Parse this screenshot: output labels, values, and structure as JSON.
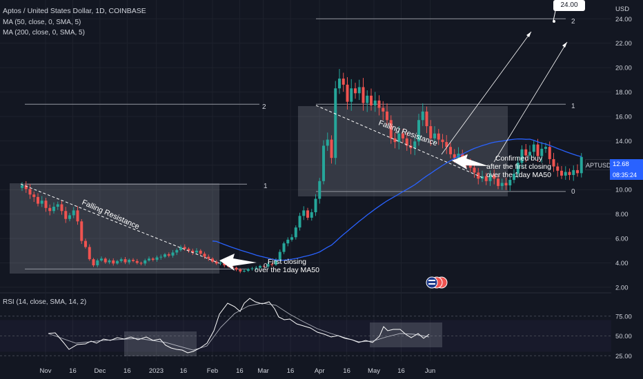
{
  "header": {
    "title": "Aptos / United States Dollar, 1D, COINBASE",
    "ma50_label": "MA (50, close, 0, SMA, 5)",
    "ma200_label": "MA (200, close, 0, SMA, 5)"
  },
  "currency_label": "USD",
  "price_tag": {
    "symbol": "APTUSD",
    "price": "12.68",
    "countdown": "08:35:24"
  },
  "target_callout": "24.00",
  "rsi_label": "RSI (14, close, SMA, 14, 2)",
  "annotations": {
    "falling_left": "Falling Resistance",
    "falling_right": "Falling Resistance",
    "first_close_line1": "First closing",
    "first_close_line2": "over the 1day MA50",
    "confirmed_line1": "Confirmed buy",
    "confirmed_line2": "after the first closing",
    "confirmed_line3": "over the 1day MA50",
    "fib_left_0": "0",
    "fib_left_1": "1",
    "fib_left_2": "2",
    "fib_right_0": "0",
    "fib_right_1": "1",
    "fib_right_2": "2"
  },
  "colors": {
    "up": "#26a69a",
    "down": "#ef5350",
    "ma50": "#2962ff",
    "background": "#131722",
    "grid": "#1e222d",
    "text": "#d1d4dc",
    "rsi": "#ffffff"
  },
  "chart_data": {
    "type": "candlestick",
    "y_axis": {
      "range": [
        1.6,
        25.2
      ],
      "ticks": [
        "2.00",
        "4.00",
        "6.00",
        "8.00",
        "10.00",
        "12.00",
        "14.00",
        "16.00",
        "18.00",
        "20.00",
        "22.00",
        "24.00"
      ],
      "tick_values": [
        2,
        4,
        6,
        8,
        10,
        12,
        14,
        16,
        18,
        20,
        22,
        24
      ]
    },
    "x_axis": {
      "labels": [
        "Nov",
        "16",
        "Dec",
        "16",
        "2023",
        "16",
        "Feb",
        "16",
        "Mar",
        "16",
        "Apr",
        "16",
        "May",
        "16",
        "Jun"
      ],
      "label_day_index": [
        0,
        15,
        30,
        45,
        61,
        76,
        92,
        107,
        120,
        135,
        151,
        166,
        181,
        196,
        212
      ]
    },
    "closes": [
      10.35,
      10.05,
      9.6,
      9.4,
      8.85,
      9.1,
      8.5,
      8.25,
      8.6,
      8.8,
      8.25,
      7.6,
      7.9,
      8.3,
      7.4,
      5.8,
      5.3,
      4.3,
      3.8,
      4.2,
      4.35,
      4.05,
      4.2,
      3.95,
      4.15,
      4.3,
      4.05,
      4.25,
      4.15,
      4.0,
      3.95,
      4.2,
      4.35,
      4.25,
      4.45,
      4.5,
      4.7,
      4.6,
      4.85,
      5.05,
      5.3,
      5.15,
      5.0,
      4.85,
      5.0,
      4.75,
      4.5,
      4.35,
      4.1,
      3.95,
      4.0,
      3.8,
      3.7,
      3.6,
      3.45,
      3.3,
      3.35,
      3.5,
      3.55,
      3.6,
      3.75,
      3.7,
      3.9,
      3.85,
      4.25,
      4.9,
      5.6,
      5.9,
      6.1,
      6.9,
      7.85,
      8.3,
      7.7,
      8.15,
      9.25,
      10.7,
      13.6,
      14.1,
      12.6,
      18.3,
      19.1,
      18.6,
      17.2,
      18.3,
      17.9,
      18.4,
      17.1,
      17.7,
      16.9,
      17.3,
      16.7,
      16.4,
      15.7,
      14.2,
      13.9,
      14.6,
      14.2,
      13.6,
      13.4,
      13.95,
      15.7,
      16.4,
      15.2,
      14.2,
      14.6,
      14.1,
      13.9,
      13.5,
      12.9,
      12.6,
      12.95,
      12.5,
      12.05,
      11.8,
      11.4,
      10.9,
      11.1,
      10.7,
      11.2,
      10.9,
      10.3,
      10.55,
      10.35,
      10.8,
      11.3,
      12.2,
      13.3,
      12.8,
      13.1,
      13.7,
      12.75,
      13.35,
      13.5,
      12.5,
      11.9,
      11.55,
      11.15,
      11.45,
      11.2,
      11.6,
      11.35,
      12.68
    ],
    "ma50_start_index": 48,
    "fib_left": {
      "level_0": 3.5,
      "level_1": 10.45,
      "level_2": 17.0
    },
    "fib_right": {
      "level_0": 9.85,
      "level_1": 17.0,
      "level_2": 24.0
    },
    "rsi": {
      "range": [
        20,
        100
      ],
      "ticks": [
        "25.00",
        "50.00",
        "75.00"
      ],
      "tick_values": [
        25,
        50,
        75
      ]
    }
  }
}
